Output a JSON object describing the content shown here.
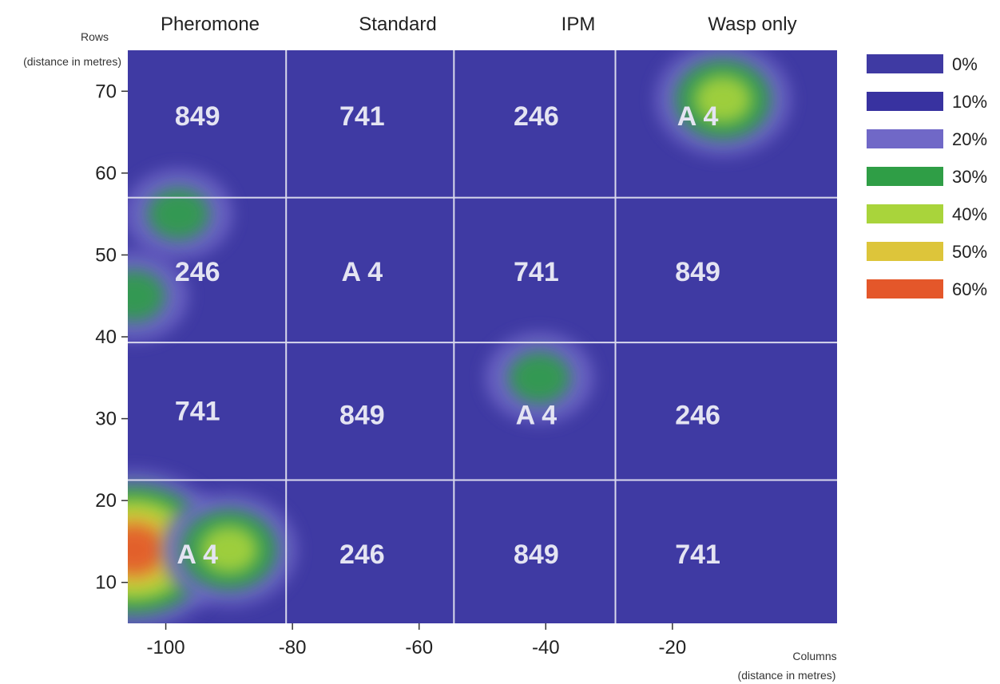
{
  "chart_data": {
    "type": "heatmap",
    "column_headers": [
      "Pheromone",
      "Standard",
      "IPM",
      "Wasp only"
    ],
    "row_axis": {
      "title": "Rows",
      "subtitle": "(distance in metres)"
    },
    "column_axis": {
      "title": "Columns",
      "subtitle": "(distance in metres)"
    },
    "xlim": [
      -106,
      6
    ],
    "ylim": [
      5,
      75
    ],
    "x_ticks": [
      {
        "value": -100,
        "label": "-100"
      },
      {
        "value": -80,
        "label": "-80"
      },
      {
        "value": -60,
        "label": "-60"
      },
      {
        "value": -40,
        "label": "-40"
      },
      {
        "value": -20,
        "label": "-20"
      }
    ],
    "y_ticks": [
      {
        "value": 70,
        "label": "70"
      },
      {
        "value": 60,
        "label": "60"
      },
      {
        "value": 50,
        "label": "50"
      },
      {
        "value": 40,
        "label": "40"
      },
      {
        "value": 30,
        "label": "30"
      },
      {
        "value": 20,
        "label": "20"
      },
      {
        "value": 10,
        "label": "10"
      }
    ],
    "plot_grid": {
      "column_boundaries": [
        -81,
        -54.5,
        -29
      ],
      "row_boundaries": [
        57,
        39.3,
        22.5
      ],
      "line_color": "#d8d8ec"
    },
    "block_labels": [
      {
        "x": -95,
        "y": 67,
        "label": "849"
      },
      {
        "x": -69,
        "y": 67,
        "label": "741"
      },
      {
        "x": -41.5,
        "y": 67,
        "label": "246"
      },
      {
        "x": -16,
        "y": 67,
        "label": "A 4"
      },
      {
        "x": -95,
        "y": 48,
        "label": "246"
      },
      {
        "x": -69,
        "y": 48,
        "label": "A 4"
      },
      {
        "x": -41.5,
        "y": 48,
        "label": "741"
      },
      {
        "x": -16,
        "y": 48,
        "label": "849"
      },
      {
        "x": -95,
        "y": 31,
        "label": "741"
      },
      {
        "x": -69,
        "y": 30.5,
        "label": "849"
      },
      {
        "x": -41.5,
        "y": 30.5,
        "label": "A 4"
      },
      {
        "x": -16,
        "y": 30.5,
        "label": "246"
      },
      {
        "x": -95,
        "y": 13.5,
        "label": "A 4"
      },
      {
        "x": -69,
        "y": 13.5,
        "label": "246"
      },
      {
        "x": -41.5,
        "y": 13.5,
        "label": "849"
      },
      {
        "x": -16,
        "y": 13.5,
        "label": "741"
      }
    ],
    "legend": {
      "placement": "right",
      "entries": [
        {
          "label": "0%",
          "color": "#3f3aa3"
        },
        {
          "label": "10%",
          "color": "#3832a0"
        },
        {
          "label": "20%",
          "color": "#7068c7"
        },
        {
          "label": "30%",
          "color": "#2f9e46"
        },
        {
          "label": "40%",
          "color": "#a9d43b"
        },
        {
          "label": "50%",
          "color": "#ddc53a"
        },
        {
          "label": "60%",
          "color": "#e4572a"
        }
      ]
    },
    "background_level": "0%",
    "hotspots": [
      {
        "x": -105,
        "y": 14,
        "level": "60%"
      },
      {
        "x": -90,
        "y": 14,
        "level": "40%"
      },
      {
        "x": -98,
        "y": 55,
        "level": "30%"
      },
      {
        "x": -105,
        "y": 45,
        "level": "30%"
      },
      {
        "x": -41,
        "y": 35,
        "level": "30%"
      },
      {
        "x": -12,
        "y": 69,
        "level": "40%"
      }
    ]
  }
}
